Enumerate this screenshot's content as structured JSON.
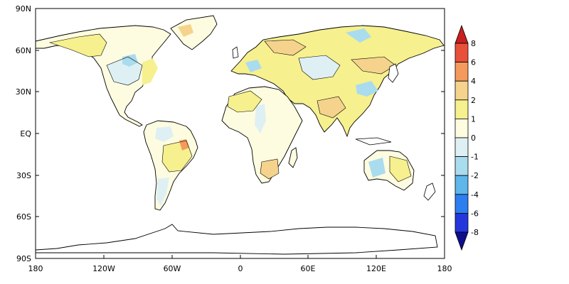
{
  "map": {
    "projection": "equirectangular",
    "lat_ticks": [
      "90N",
      "60N",
      "30N",
      "EQ",
      "30S",
      "60S",
      "90S"
    ],
    "lon_ticks": [
      "180",
      "120W",
      "60W",
      "0",
      "60E",
      "120E",
      "180"
    ]
  },
  "colorbar": {
    "labels": [
      "8",
      "6",
      "4",
      "2",
      "1",
      "0",
      "-1",
      "-2",
      "-4",
      "-6",
      "-8"
    ],
    "colors": [
      "#c81e1e",
      "#e8503a",
      "#f49a5c",
      "#f5d38d",
      "#f6f08e",
      "#fdfce0",
      "#def0f4",
      "#a9dcee",
      "#5eb6ea",
      "#2d7ef0",
      "#2437dc",
      "#0f0f8c"
    ]
  }
}
